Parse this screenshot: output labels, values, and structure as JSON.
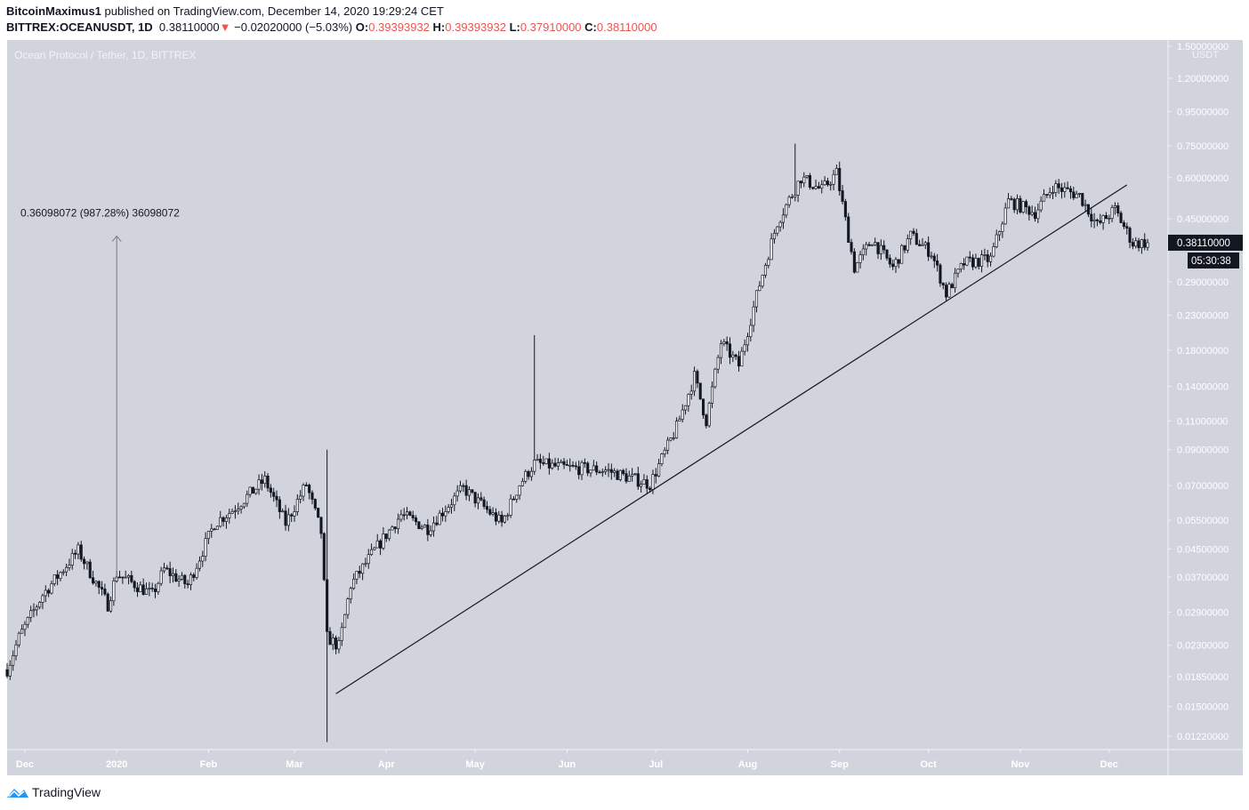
{
  "header": {
    "author": "BitcoinMaximus1",
    "published": "published on TradingView.com, December 14, 2020 19:29:24 CET",
    "symbol": "BITTREX:OCEANUSDT, 1D",
    "last": "0.38110000",
    "change_arrow": "▼",
    "change": "−0.02020000 (−5.03%)",
    "o_label": "O:",
    "o": "0.39393932",
    "h_label": "H:",
    "h": "0.39393932",
    "l_label": "L:",
    "l": "0.37910000",
    "c_label": "C:",
    "c": "0.38110000"
  },
  "footer": {
    "brand": "TradingView",
    "brand_color": "#2962ff"
  },
  "chart_data": {
    "type": "candlestick",
    "title": "Ocean Protocol / Tether, 1D, BITTREX",
    "scale": "log",
    "y_unit": "USDT",
    "ylim": [
      0.0115,
      1.5
    ],
    "y_ticks": [
      "1.50000000",
      "1.20000000",
      "0.95000000",
      "0.75000000",
      "0.60000000",
      "0.45000000",
      "0.29000000",
      "0.23000000",
      "0.18000000",
      "0.14000000",
      "0.11000000",
      "0.09000000",
      "0.07000000",
      "0.05500000",
      "0.04500000",
      "0.03700000",
      "0.02900000",
      "0.02300000",
      "0.01850000",
      "0.01500000",
      "0.01220000"
    ],
    "x_range": [
      "2019-11-25",
      "2020-12-20"
    ],
    "x_ticks": [
      {
        "date": "2019-12-01",
        "label": "Dec"
      },
      {
        "date": "2020-01-01",
        "label": "2020"
      },
      {
        "date": "2020-02-01",
        "label": "Feb"
      },
      {
        "date": "2020-03-01",
        "label": "Mar"
      },
      {
        "date": "2020-04-01",
        "label": "Apr"
      },
      {
        "date": "2020-05-01",
        "label": "May"
      },
      {
        "date": "2020-06-01",
        "label": "Jun"
      },
      {
        "date": "2020-07-01",
        "label": "Jul"
      },
      {
        "date": "2020-08-01",
        "label": "Aug"
      },
      {
        "date": "2020-09-01",
        "label": "Sep"
      },
      {
        "date": "2020-10-01",
        "label": "Oct"
      },
      {
        "date": "2020-11-01",
        "label": "Nov"
      },
      {
        "date": "2020-12-01",
        "label": "Dec"
      }
    ],
    "approx_closes": [
      [
        "2019-11-25",
        0.0194
      ],
      [
        "2019-11-29",
        0.0243
      ],
      [
        "2019-12-07",
        0.0327
      ],
      [
        "2019-12-19",
        0.0445
      ],
      [
        "2019-12-29",
        0.0305
      ],
      [
        "2020-01-01",
        0.0379
      ],
      [
        "2020-01-13",
        0.0327
      ],
      [
        "2020-01-17",
        0.039
      ],
      [
        "2020-01-25",
        0.035
      ],
      [
        "2020-02-03",
        0.0538
      ],
      [
        "2020-02-09",
        0.059
      ],
      [
        "2020-02-20",
        0.0729
      ],
      [
        "2020-02-27",
        0.0538
      ],
      [
        "2020-03-05",
        0.0707
      ],
      [
        "2020-03-10",
        0.0506
      ],
      [
        "2020-03-12",
        0.0243
      ],
      [
        "2020-03-16",
        0.0228
      ],
      [
        "2020-03-20",
        0.035
      ],
      [
        "2020-03-28",
        0.0445
      ],
      [
        "2020-04-06",
        0.0571
      ],
      [
        "2020-04-15",
        0.052
      ],
      [
        "2020-04-27",
        0.0687
      ],
      [
        "2020-05-10",
        0.0538
      ],
      [
        "2020-05-16",
        0.0707
      ],
      [
        "2020-05-21",
        0.0818
      ],
      [
        "2020-05-30",
        0.0795
      ],
      [
        "2020-06-14",
        0.078
      ],
      [
        "2020-06-29",
        0.0707
      ],
      [
        "2020-07-08",
        0.105
      ],
      [
        "2020-07-14",
        0.15
      ],
      [
        "2020-07-18",
        0.11
      ],
      [
        "2020-07-23",
        0.19
      ],
      [
        "2020-07-29",
        0.162
      ],
      [
        "2020-08-05",
        0.285
      ],
      [
        "2020-08-11",
        0.44
      ],
      [
        "2020-08-19",
        0.6
      ],
      [
        "2020-08-26",
        0.55
      ],
      [
        "2020-08-31",
        0.62
      ],
      [
        "2020-09-06",
        0.32
      ],
      [
        "2020-09-12",
        0.39
      ],
      [
        "2020-09-19",
        0.32
      ],
      [
        "2020-09-25",
        0.4
      ],
      [
        "2020-10-02",
        0.355
      ],
      [
        "2020-10-07",
        0.267
      ],
      [
        "2020-10-13",
        0.33
      ],
      [
        "2020-10-22",
        0.34
      ],
      [
        "2020-10-28",
        0.51
      ],
      [
        "2020-11-06",
        0.47
      ],
      [
        "2020-11-12",
        0.565
      ],
      [
        "2020-11-21",
        0.53
      ],
      [
        "2020-11-27",
        0.43
      ],
      [
        "2020-12-03",
        0.48
      ],
      [
        "2020-12-09",
        0.38
      ],
      [
        "2020-12-14",
        0.3811
      ]
    ],
    "wick_extremes": [
      {
        "date": "2020-03-12",
        "low": 0.0117,
        "high": 0.09
      },
      {
        "date": "2020-05-21",
        "high": 0.2
      },
      {
        "date": "2020-08-17",
        "high": 0.76
      }
    ],
    "trendline": {
      "from": [
        "2020-03-15",
        0.0164
      ],
      "to": [
        "2020-12-07",
        0.57
      ]
    },
    "measure": {
      "date": "2020-01-01",
      "from": 0.0366,
      "to": 0.399,
      "label": "0.36098072 (987.28%) 36098072"
    },
    "last_price": {
      "value": 0.3811,
      "label": "0.38110000",
      "countdown": "05:30:38"
    },
    "colors": {
      "background": "#d1d4dc",
      "candle": "#131722",
      "up_fill": "#ffffff",
      "down_fill": "#131722",
      "axis_text": "#ffffff",
      "red": "#ef5350"
    }
  }
}
